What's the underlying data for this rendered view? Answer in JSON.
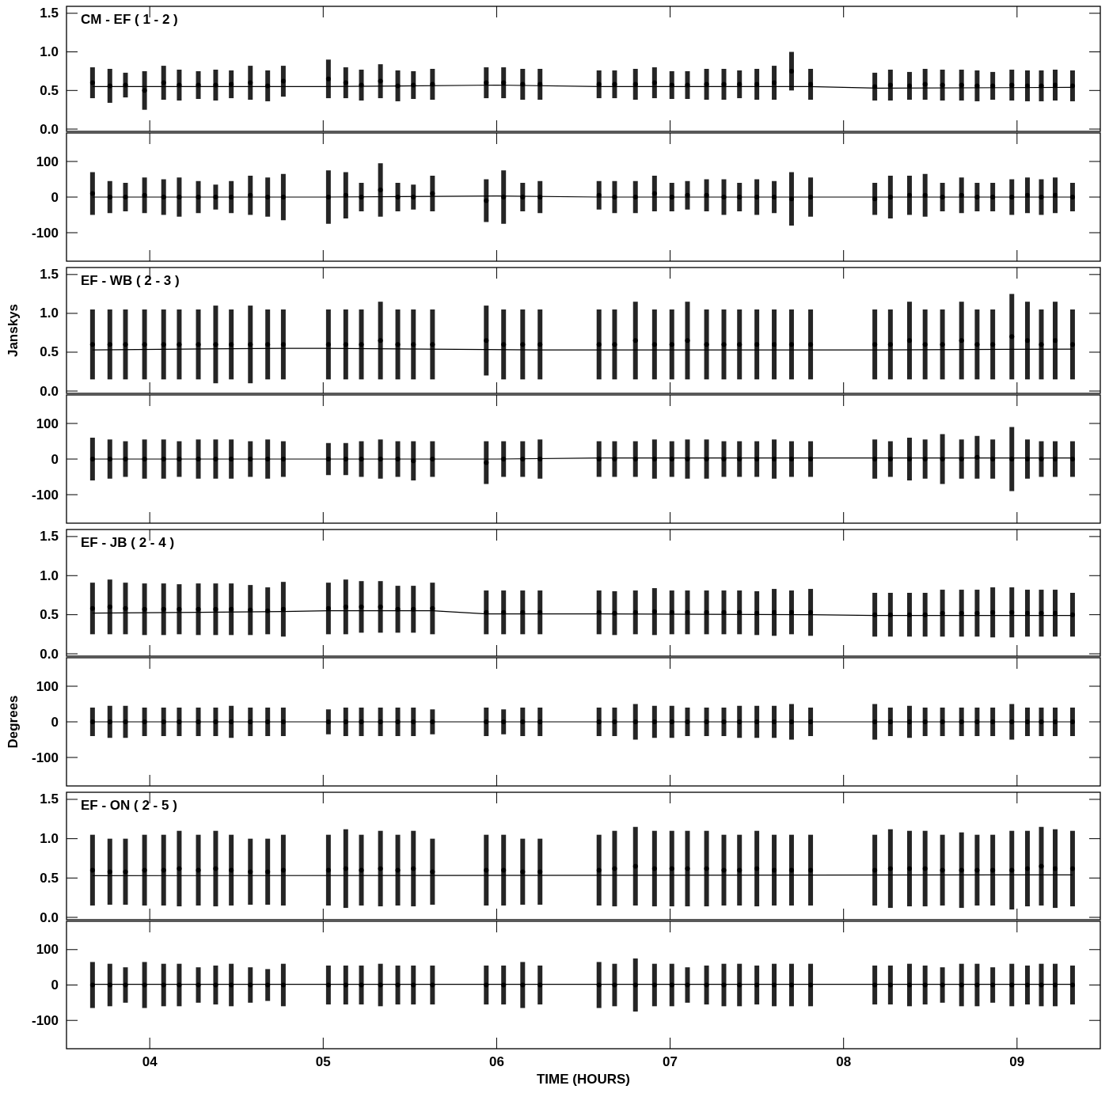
{
  "chart_data": [
    {
      "type": "scatter",
      "title": "CM - EF ( 1 - 2 )",
      "xlim": [
        3.52,
        9.48
      ],
      "xticks": [
        {
          "value": 4,
          "label": null
        },
        {
          "value": 5,
          "label": null
        },
        {
          "value": 6,
          "label": null
        },
        {
          "value": 7,
          "label": null
        },
        {
          "value": 8,
          "label": null
        },
        {
          "value": 9,
          "label": null
        }
      ],
      "ylim": [
        -0.03,
        1.59
      ],
      "yticks": [
        {
          "value": 0,
          "label": "0.0"
        },
        {
          "value": 0.5,
          "label": "0.5"
        },
        {
          "value": 1,
          "label": "1.0"
        },
        {
          "value": 1.5,
          "label": "1.5"
        }
      ],
      "tick_labels": "y",
      "grid": false,
      "x": [
        3.67,
        3.77,
        3.86,
        3.97,
        4.08,
        4.17,
        4.28,
        4.38,
        4.47,
        4.58,
        4.68,
        4.77,
        5.03,
        5.13,
        5.22,
        5.33,
        5.43,
        5.52,
        5.63,
        5.94,
        6.04,
        6.15,
        6.25,
        6.59,
        6.68,
        6.8,
        6.91,
        7.01,
        7.1,
        7.21,
        7.31,
        7.4,
        7.5,
        7.6,
        7.7,
        7.81,
        8.18,
        8.27,
        8.38,
        8.47,
        8.57,
        8.68,
        8.77,
        8.86,
        8.97,
        9.06,
        9.14,
        9.22,
        9.32
      ],
      "series": [
        {
          "type": "scatter",
          "color": "#000000",
          "values": [
            0.6,
            0.56,
            0.57,
            0.5,
            0.6,
            0.57,
            0.57,
            0.57,
            0.58,
            0.6,
            0.56,
            0.62,
            0.65,
            0.6,
            0.57,
            0.62,
            0.56,
            0.57,
            0.58,
            0.6,
            0.6,
            0.58,
            0.58,
            0.58,
            0.58,
            0.58,
            0.6,
            0.57,
            0.57,
            0.58,
            0.58,
            0.58,
            0.58,
            0.6,
            0.75,
            0.58,
            0.55,
            0.57,
            0.56,
            0.58,
            0.57,
            0.57,
            0.56,
            0.56,
            0.57,
            0.56,
            0.56,
            0.57,
            0.56
          ],
          "errors": [
            0.2,
            0.22,
            0.16,
            0.25,
            0.22,
            0.2,
            0.18,
            0.2,
            0.18,
            0.22,
            0.2,
            0.2,
            0.25,
            0.2,
            0.2,
            0.22,
            0.2,
            0.18,
            0.2,
            0.2,
            0.2,
            0.2,
            0.2,
            0.18,
            0.18,
            0.2,
            0.2,
            0.18,
            0.18,
            0.2,
            0.2,
            0.18,
            0.2,
            0.22,
            0.25,
            0.2,
            0.18,
            0.2,
            0.18,
            0.2,
            0.2,
            0.2,
            0.2,
            0.18,
            0.2,
            0.2,
            0.2,
            0.2,
            0.2
          ]
        },
        {
          "type": "line",
          "color": "#000000",
          "x": [
            3.67,
            5.0,
            6.0,
            6.6,
            7.8,
            8.2,
            9.32
          ],
          "values": [
            0.55,
            0.55,
            0.57,
            0.55,
            0.55,
            0.53,
            0.54
          ]
        }
      ]
    },
    {
      "type": "scatter",
      "xlim": [
        3.52,
        9.48
      ],
      "xticks": [
        {
          "value": 4,
          "label": null
        },
        {
          "value": 5,
          "label": null
        },
        {
          "value": 6,
          "label": null
        },
        {
          "value": 7,
          "label": null
        },
        {
          "value": 8,
          "label": null
        },
        {
          "value": 9,
          "label": null
        }
      ],
      "ylim": [
        -180,
        180
      ],
      "yticks": [
        -100,
        0,
        100
      ],
      "tick_labels": "y",
      "grid": false,
      "x": [
        3.67,
        3.77,
        3.86,
        3.97,
        4.08,
        4.17,
        4.28,
        4.38,
        4.47,
        4.58,
        4.68,
        4.77,
        5.03,
        5.13,
        5.22,
        5.33,
        5.43,
        5.52,
        5.63,
        5.94,
        6.04,
        6.15,
        6.25,
        6.59,
        6.68,
        6.8,
        6.91,
        7.01,
        7.1,
        7.21,
        7.31,
        7.4,
        7.5,
        7.6,
        7.7,
        7.81,
        8.18,
        8.27,
        8.38,
        8.47,
        8.57,
        8.68,
        8.77,
        8.86,
        8.97,
        9.06,
        9.14,
        9.22,
        9.32
      ],
      "series": [
        {
          "type": "scatter",
          "color": "#000000",
          "values": [
            10,
            0,
            0,
            5,
            0,
            0,
            0,
            0,
            0,
            5,
            0,
            0,
            0,
            5,
            0,
            20,
            0,
            0,
            10,
            -10,
            0,
            0,
            0,
            5,
            0,
            0,
            10,
            0,
            5,
            5,
            0,
            0,
            0,
            0,
            -5,
            0,
            -5,
            0,
            5,
            5,
            0,
            5,
            0,
            0,
            0,
            5,
            0,
            5,
            0
          ],
          "errors": [
            60,
            45,
            40,
            50,
            50,
            55,
            45,
            35,
            45,
            55,
            55,
            65,
            75,
            65,
            40,
            75,
            40,
            35,
            50,
            60,
            75,
            40,
            45,
            40,
            45,
            45,
            50,
            40,
            40,
            45,
            50,
            40,
            50,
            45,
            75,
            55,
            45,
            60,
            55,
            60,
            40,
            50,
            40,
            40,
            50,
            50,
            50,
            50,
            40
          ]
        },
        {
          "type": "line",
          "color": "#000000",
          "x": [
            3.67,
            5.0,
            6.0,
            6.6,
            7.8,
            8.2,
            9.32
          ],
          "values": [
            0,
            0,
            3,
            0,
            0,
            0,
            0
          ]
        }
      ]
    },
    {
      "type": "scatter",
      "title": "EF - WB ( 2 - 3 )",
      "ylabel": "Janskys",
      "xlim": [
        3.52,
        9.48
      ],
      "xticks": [
        {
          "value": 4,
          "label": null
        },
        {
          "value": 5,
          "label": null
        },
        {
          "value": 6,
          "label": null
        },
        {
          "value": 7,
          "label": null
        },
        {
          "value": 8,
          "label": null
        },
        {
          "value": 9,
          "label": null
        }
      ],
      "ylim": [
        -0.03,
        1.59
      ],
      "yticks": [
        {
          "value": 0,
          "label": "0.0"
        },
        {
          "value": 0.5,
          "label": "0.5"
        },
        {
          "value": 1,
          "label": "1.0"
        },
        {
          "value": 1.5,
          "label": "1.5"
        }
      ],
      "tick_labels": "y",
      "grid": false,
      "x": [
        3.67,
        3.77,
        3.86,
        3.97,
        4.08,
        4.17,
        4.28,
        4.38,
        4.47,
        4.58,
        4.68,
        4.77,
        5.03,
        5.13,
        5.22,
        5.33,
        5.43,
        5.52,
        5.63,
        5.94,
        6.04,
        6.15,
        6.25,
        6.59,
        6.68,
        6.8,
        6.91,
        7.01,
        7.1,
        7.21,
        7.31,
        7.4,
        7.5,
        7.6,
        7.7,
        7.81,
        8.18,
        8.27,
        8.38,
        8.47,
        8.57,
        8.68,
        8.77,
        8.86,
        8.97,
        9.06,
        9.14,
        9.22,
        9.32
      ],
      "series": [
        {
          "type": "scatter",
          "color": "#000000",
          "values": [
            0.6,
            0.6,
            0.6,
            0.6,
            0.6,
            0.6,
            0.6,
            0.6,
            0.6,
            0.6,
            0.6,
            0.6,
            0.6,
            0.6,
            0.6,
            0.65,
            0.6,
            0.6,
            0.6,
            0.65,
            0.6,
            0.6,
            0.6,
            0.6,
            0.6,
            0.65,
            0.6,
            0.6,
            0.65,
            0.6,
            0.6,
            0.6,
            0.6,
            0.6,
            0.6,
            0.6,
            0.6,
            0.6,
            0.65,
            0.6,
            0.6,
            0.65,
            0.6,
            0.6,
            0.7,
            0.65,
            0.6,
            0.65,
            0.6
          ],
          "errors": [
            0.45,
            0.45,
            0.45,
            0.45,
            0.45,
            0.45,
            0.45,
            0.5,
            0.45,
            0.5,
            0.45,
            0.45,
            0.45,
            0.45,
            0.45,
            0.5,
            0.45,
            0.45,
            0.45,
            0.45,
            0.45,
            0.45,
            0.45,
            0.45,
            0.45,
            0.5,
            0.45,
            0.45,
            0.5,
            0.45,
            0.45,
            0.45,
            0.45,
            0.45,
            0.45,
            0.45,
            0.45,
            0.45,
            0.5,
            0.45,
            0.45,
            0.5,
            0.45,
            0.45,
            0.55,
            0.5,
            0.45,
            0.5,
            0.45
          ]
        },
        {
          "type": "line",
          "color": "#000000",
          "x": [
            3.67,
            4.77,
            5.0,
            6.25,
            6.6,
            7.8,
            8.2,
            9.32
          ],
          "values": [
            0.53,
            0.55,
            0.55,
            0.53,
            0.53,
            0.53,
            0.53,
            0.54
          ]
        }
      ]
    },
    {
      "type": "scatter",
      "xlim": [
        3.52,
        9.48
      ],
      "xticks": [
        {
          "value": 4,
          "label": null
        },
        {
          "value": 5,
          "label": null
        },
        {
          "value": 6,
          "label": null
        },
        {
          "value": 7,
          "label": null
        },
        {
          "value": 8,
          "label": null
        },
        {
          "value": 9,
          "label": null
        }
      ],
      "ylim": [
        -180,
        180
      ],
      "yticks": [
        -100,
        0,
        100
      ],
      "tick_labels": "y",
      "grid": false,
      "x": [
        3.67,
        3.77,
        3.86,
        3.97,
        4.08,
        4.17,
        4.28,
        4.38,
        4.47,
        4.58,
        4.68,
        4.77,
        5.03,
        5.13,
        5.22,
        5.33,
        5.43,
        5.52,
        5.63,
        5.94,
        6.04,
        6.15,
        6.25,
        6.59,
        6.68,
        6.8,
        6.91,
        7.01,
        7.1,
        7.21,
        7.31,
        7.4,
        7.5,
        7.6,
        7.7,
        7.81,
        8.18,
        8.27,
        8.38,
        8.47,
        8.57,
        8.68,
        8.77,
        8.86,
        8.97,
        9.06,
        9.14,
        9.22,
        9.32
      ],
      "series": [
        {
          "type": "scatter",
          "color": "#000000",
          "values": [
            0,
            0,
            0,
            0,
            0,
            0,
            0,
            0,
            0,
            0,
            0,
            0,
            0,
            0,
            0,
            0,
            0,
            -5,
            0,
            -10,
            0,
            0,
            0,
            0,
            0,
            0,
            0,
            0,
            0,
            0,
            0,
            0,
            0,
            0,
            0,
            0,
            0,
            0,
            0,
            0,
            0,
            0,
            5,
            0,
            0,
            0,
            0,
            0,
            0
          ],
          "errors": [
            60,
            55,
            50,
            55,
            55,
            50,
            55,
            55,
            55,
            50,
            55,
            50,
            45,
            45,
            50,
            55,
            50,
            55,
            50,
            60,
            50,
            50,
            55,
            50,
            50,
            50,
            55,
            50,
            55,
            55,
            50,
            50,
            50,
            55,
            50,
            50,
            55,
            50,
            60,
            55,
            70,
            55,
            60,
            55,
            90,
            55,
            50,
            50,
            50
          ]
        },
        {
          "type": "line",
          "color": "#000000",
          "x": [
            3.67,
            6.0,
            6.6,
            9.32
          ],
          "values": [
            0,
            0,
            3,
            3
          ]
        }
      ]
    },
    {
      "type": "scatter",
      "title": "EF - JB ( 2 - 4 )",
      "xlim": [
        3.52,
        9.48
      ],
      "xticks": [
        {
          "value": 4,
          "label": null
        },
        {
          "value": 5,
          "label": null
        },
        {
          "value": 6,
          "label": null
        },
        {
          "value": 7,
          "label": null
        },
        {
          "value": 8,
          "label": null
        },
        {
          "value": 9,
          "label": null
        }
      ],
      "ylim": [
        -0.03,
        1.59
      ],
      "yticks": [
        {
          "value": 0,
          "label": "0.0"
        },
        {
          "value": 0.5,
          "label": "0.5"
        },
        {
          "value": 1,
          "label": "1.0"
        },
        {
          "value": 1.5,
          "label": "1.5"
        }
      ],
      "tick_labels": "y",
      "grid": false,
      "x": [
        3.67,
        3.77,
        3.86,
        3.97,
        4.08,
        4.17,
        4.28,
        4.38,
        4.47,
        4.58,
        4.68,
        4.77,
        5.03,
        5.13,
        5.22,
        5.33,
        5.43,
        5.52,
        5.63,
        5.94,
        6.04,
        6.15,
        6.25,
        6.59,
        6.68,
        6.8,
        6.91,
        7.01,
        7.1,
        7.21,
        7.31,
        7.4,
        7.5,
        7.6,
        7.7,
        7.81,
        8.18,
        8.27,
        8.38,
        8.47,
        8.57,
        8.68,
        8.77,
        8.86,
        8.97,
        9.06,
        9.14,
        9.22,
        9.32
      ],
      "series": [
        {
          "type": "scatter",
          "color": "#000000",
          "values": [
            0.58,
            0.6,
            0.58,
            0.57,
            0.57,
            0.57,
            0.57,
            0.57,
            0.57,
            0.56,
            0.55,
            0.57,
            0.58,
            0.6,
            0.6,
            0.6,
            0.57,
            0.57,
            0.58,
            0.53,
            0.53,
            0.53,
            0.53,
            0.53,
            0.52,
            0.53,
            0.54,
            0.53,
            0.53,
            0.53,
            0.53,
            0.53,
            0.52,
            0.53,
            0.53,
            0.53,
            0.5,
            0.5,
            0.5,
            0.5,
            0.52,
            0.52,
            0.52,
            0.53,
            0.53,
            0.52,
            0.52,
            0.52,
            0.5
          ],
          "errors": [
            0.33,
            0.35,
            0.33,
            0.33,
            0.33,
            0.32,
            0.33,
            0.33,
            0.33,
            0.32,
            0.3,
            0.35,
            0.33,
            0.35,
            0.33,
            0.33,
            0.3,
            0.3,
            0.33,
            0.28,
            0.28,
            0.28,
            0.28,
            0.28,
            0.28,
            0.28,
            0.3,
            0.28,
            0.28,
            0.28,
            0.28,
            0.28,
            0.28,
            0.3,
            0.28,
            0.3,
            0.28,
            0.28,
            0.28,
            0.28,
            0.3,
            0.3,
            0.3,
            0.32,
            0.32,
            0.3,
            0.3,
            0.3,
            0.28
          ]
        },
        {
          "type": "line",
          "color": "#000000",
          "x": [
            3.67,
            4.77,
            5.03,
            5.63,
            5.94,
            6.25,
            6.59,
            7.81,
            8.18,
            9.32
          ],
          "values": [
            0.52,
            0.54,
            0.55,
            0.55,
            0.51,
            0.51,
            0.51,
            0.5,
            0.49,
            0.49
          ]
        }
      ]
    },
    {
      "type": "scatter",
      "ylabel": "Degrees",
      "xlim": [
        3.52,
        9.48
      ],
      "xticks": [
        {
          "value": 4,
          "label": null
        },
        {
          "value": 5,
          "label": null
        },
        {
          "value": 6,
          "label": null
        },
        {
          "value": 7,
          "label": null
        },
        {
          "value": 8,
          "label": null
        },
        {
          "value": 9,
          "label": null
        }
      ],
      "ylim": [
        -180,
        180
      ],
      "yticks": [
        -100,
        0,
        100
      ],
      "tick_labels": "y",
      "grid": false,
      "x": [
        3.67,
        3.77,
        3.86,
        3.97,
        4.08,
        4.17,
        4.28,
        4.38,
        4.47,
        4.58,
        4.68,
        4.77,
        5.03,
        5.13,
        5.22,
        5.33,
        5.43,
        5.52,
        5.63,
        5.94,
        6.04,
        6.15,
        6.25,
        6.59,
        6.68,
        6.8,
        6.91,
        7.01,
        7.1,
        7.21,
        7.31,
        7.4,
        7.5,
        7.6,
        7.7,
        7.81,
        8.18,
        8.27,
        8.38,
        8.47,
        8.57,
        8.68,
        8.77,
        8.86,
        8.97,
        9.06,
        9.14,
        9.22,
        9.32
      ],
      "series": [
        {
          "type": "scatter",
          "color": "#000000",
          "values": [
            0,
            0,
            0,
            0,
            0,
            0,
            0,
            0,
            0,
            0,
            0,
            0,
            0,
            0,
            0,
            0,
            0,
            0,
            0,
            0,
            0,
            0,
            0,
            0,
            0,
            0,
            0,
            0,
            0,
            0,
            0,
            0,
            0,
            0,
            0,
            0,
            0,
            0,
            0,
            0,
            0,
            0,
            0,
            0,
            0,
            0,
            0,
            0,
            0
          ],
          "errors": [
            40,
            45,
            45,
            40,
            40,
            40,
            40,
            40,
            45,
            40,
            40,
            40,
            35,
            40,
            40,
            40,
            40,
            40,
            35,
            40,
            35,
            40,
            40,
            40,
            40,
            50,
            45,
            45,
            40,
            40,
            40,
            45,
            45,
            45,
            50,
            40,
            50,
            40,
            45,
            40,
            40,
            40,
            40,
            40,
            50,
            40,
            40,
            40,
            40
          ]
        },
        {
          "type": "line",
          "color": "#000000",
          "x": [
            3.67,
            9.32
          ],
          "values": [
            0,
            0
          ]
        }
      ]
    },
    {
      "type": "scatter",
      "title": "EF - ON ( 2 - 5 )",
      "xlim": [
        3.52,
        9.48
      ],
      "xticks": [
        {
          "value": 4,
          "label": null
        },
        {
          "value": 5,
          "label": null
        },
        {
          "value": 6,
          "label": null
        },
        {
          "value": 7,
          "label": null
        },
        {
          "value": 8,
          "label": null
        },
        {
          "value": 9,
          "label": null
        }
      ],
      "ylim": [
        -0.03,
        1.59
      ],
      "yticks": [
        {
          "value": 0,
          "label": "0.0"
        },
        {
          "value": 0.5,
          "label": "0.5"
        },
        {
          "value": 1,
          "label": "1.0"
        },
        {
          "value": 1.5,
          "label": "1.5"
        }
      ],
      "tick_labels": "y",
      "grid": false,
      "x": [
        3.67,
        3.77,
        3.86,
        3.97,
        4.08,
        4.17,
        4.28,
        4.38,
        4.47,
        4.58,
        4.68,
        4.77,
        5.03,
        5.13,
        5.22,
        5.33,
        5.43,
        5.52,
        5.63,
        5.94,
        6.04,
        6.15,
        6.25,
        6.59,
        6.68,
        6.8,
        6.91,
        7.01,
        7.1,
        7.21,
        7.31,
        7.4,
        7.5,
        7.6,
        7.7,
        7.81,
        8.18,
        8.27,
        8.38,
        8.47,
        8.57,
        8.68,
        8.77,
        8.86,
        8.97,
        9.06,
        9.14,
        9.22,
        9.32
      ],
      "series": [
        {
          "type": "scatter",
          "color": "#000000",
          "values": [
            0.6,
            0.58,
            0.58,
            0.6,
            0.6,
            0.62,
            0.6,
            0.62,
            0.6,
            0.58,
            0.58,
            0.6,
            0.6,
            0.62,
            0.6,
            0.62,
            0.6,
            0.62,
            0.58,
            0.6,
            0.6,
            0.58,
            0.58,
            0.6,
            0.62,
            0.65,
            0.62,
            0.62,
            0.62,
            0.62,
            0.6,
            0.6,
            0.62,
            0.6,
            0.6,
            0.6,
            0.6,
            0.62,
            0.62,
            0.62,
            0.6,
            0.6,
            0.6,
            0.6,
            0.6,
            0.62,
            0.65,
            0.62,
            0.62
          ],
          "errors": [
            0.45,
            0.42,
            0.42,
            0.45,
            0.45,
            0.48,
            0.45,
            0.48,
            0.45,
            0.42,
            0.42,
            0.45,
            0.45,
            0.5,
            0.45,
            0.48,
            0.45,
            0.48,
            0.42,
            0.45,
            0.45,
            0.42,
            0.42,
            0.45,
            0.48,
            0.5,
            0.48,
            0.48,
            0.48,
            0.48,
            0.45,
            0.45,
            0.48,
            0.45,
            0.45,
            0.45,
            0.45,
            0.5,
            0.48,
            0.48,
            0.45,
            0.48,
            0.45,
            0.45,
            0.5,
            0.48,
            0.5,
            0.5,
            0.48
          ]
        },
        {
          "type": "line",
          "color": "#000000",
          "x": [
            3.67,
            9.32
          ],
          "values": [
            0.53,
            0.54
          ]
        }
      ]
    },
    {
      "type": "scatter",
      "xlabel": "TIME (HOURS)",
      "xlim": [
        3.52,
        9.48
      ],
      "xticks": [
        {
          "value": 4,
          "label": "04"
        },
        {
          "value": 5,
          "label": "05"
        },
        {
          "value": 6,
          "label": "06"
        },
        {
          "value": 7,
          "label": "07"
        },
        {
          "value": 8,
          "label": "08"
        },
        {
          "value": 9,
          "label": "09"
        }
      ],
      "ylim": [
        -180,
        180
      ],
      "yticks": [
        -100,
        0,
        100
      ],
      "grid": false,
      "x": [
        3.67,
        3.77,
        3.86,
        3.97,
        4.08,
        4.17,
        4.28,
        4.38,
        4.47,
        4.58,
        4.68,
        4.77,
        5.03,
        5.13,
        5.22,
        5.33,
        5.43,
        5.52,
        5.63,
        5.94,
        6.04,
        6.15,
        6.25,
        6.59,
        6.68,
        6.8,
        6.91,
        7.01,
        7.1,
        7.21,
        7.31,
        7.4,
        7.5,
        7.6,
        7.7,
        7.81,
        8.18,
        8.27,
        8.38,
        8.47,
        8.57,
        8.68,
        8.77,
        8.86,
        8.97,
        9.06,
        9.14,
        9.22,
        9.32
      ],
      "series": [
        {
          "type": "scatter",
          "color": "#000000",
          "values": [
            0,
            0,
            0,
            0,
            0,
            0,
            0,
            0,
            0,
            0,
            0,
            0,
            0,
            0,
            0,
            0,
            0,
            0,
            0,
            0,
            0,
            0,
            0,
            0,
            0,
            0,
            0,
            0,
            0,
            0,
            0,
            0,
            0,
            0,
            0,
            0,
            0,
            0,
            0,
            0,
            0,
            0,
            0,
            0,
            0,
            0,
            0,
            0,
            0
          ],
          "errors": [
            65,
            60,
            50,
            65,
            60,
            60,
            50,
            55,
            60,
            50,
            45,
            60,
            55,
            55,
            55,
            60,
            55,
            55,
            55,
            55,
            55,
            65,
            55,
            65,
            60,
            75,
            60,
            60,
            50,
            55,
            60,
            60,
            55,
            60,
            60,
            60,
            55,
            55,
            60,
            55,
            50,
            60,
            60,
            50,
            60,
            55,
            60,
            60,
            55
          ]
        },
        {
          "type": "line",
          "color": "#000000",
          "x": [
            3.67,
            9.32
          ],
          "values": [
            2,
            2
          ]
        }
      ]
    }
  ]
}
